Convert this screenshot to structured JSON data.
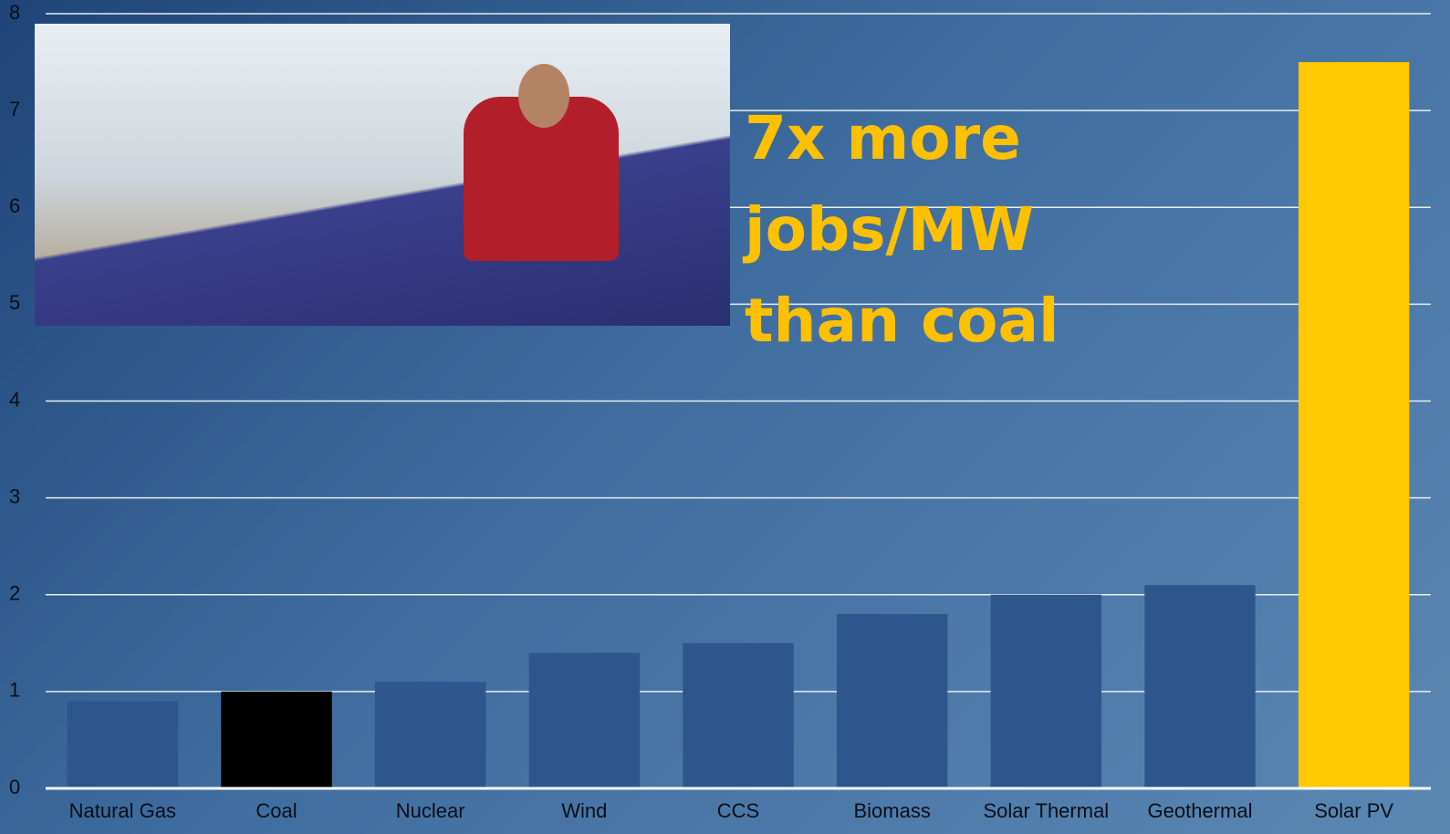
{
  "chart_data": {
    "type": "bar",
    "categories": [
      "Natural Gas",
      "Coal",
      "Nuclear",
      "Wind",
      "CCS",
      "Biomass",
      "Solar Thermal",
      "Geothermal",
      "Solar PV"
    ],
    "values": [
      0.9,
      1.0,
      1.1,
      1.4,
      1.5,
      1.8,
      2.0,
      2.1,
      7.5
    ],
    "colors": [
      "#2d578c",
      "#000000",
      "#2d578c",
      "#2d578c",
      "#2d578c",
      "#2d578c",
      "#2d578c",
      "#2d578c",
      "#ffc800"
    ],
    "ylim": [
      0,
      8
    ],
    "yticks": [
      0,
      1,
      2,
      3,
      4,
      5,
      6,
      7,
      8
    ],
    "grid": true,
    "annotation": "7x more jobs/MW than coal",
    "annotation_color": "#ffc000"
  }
}
